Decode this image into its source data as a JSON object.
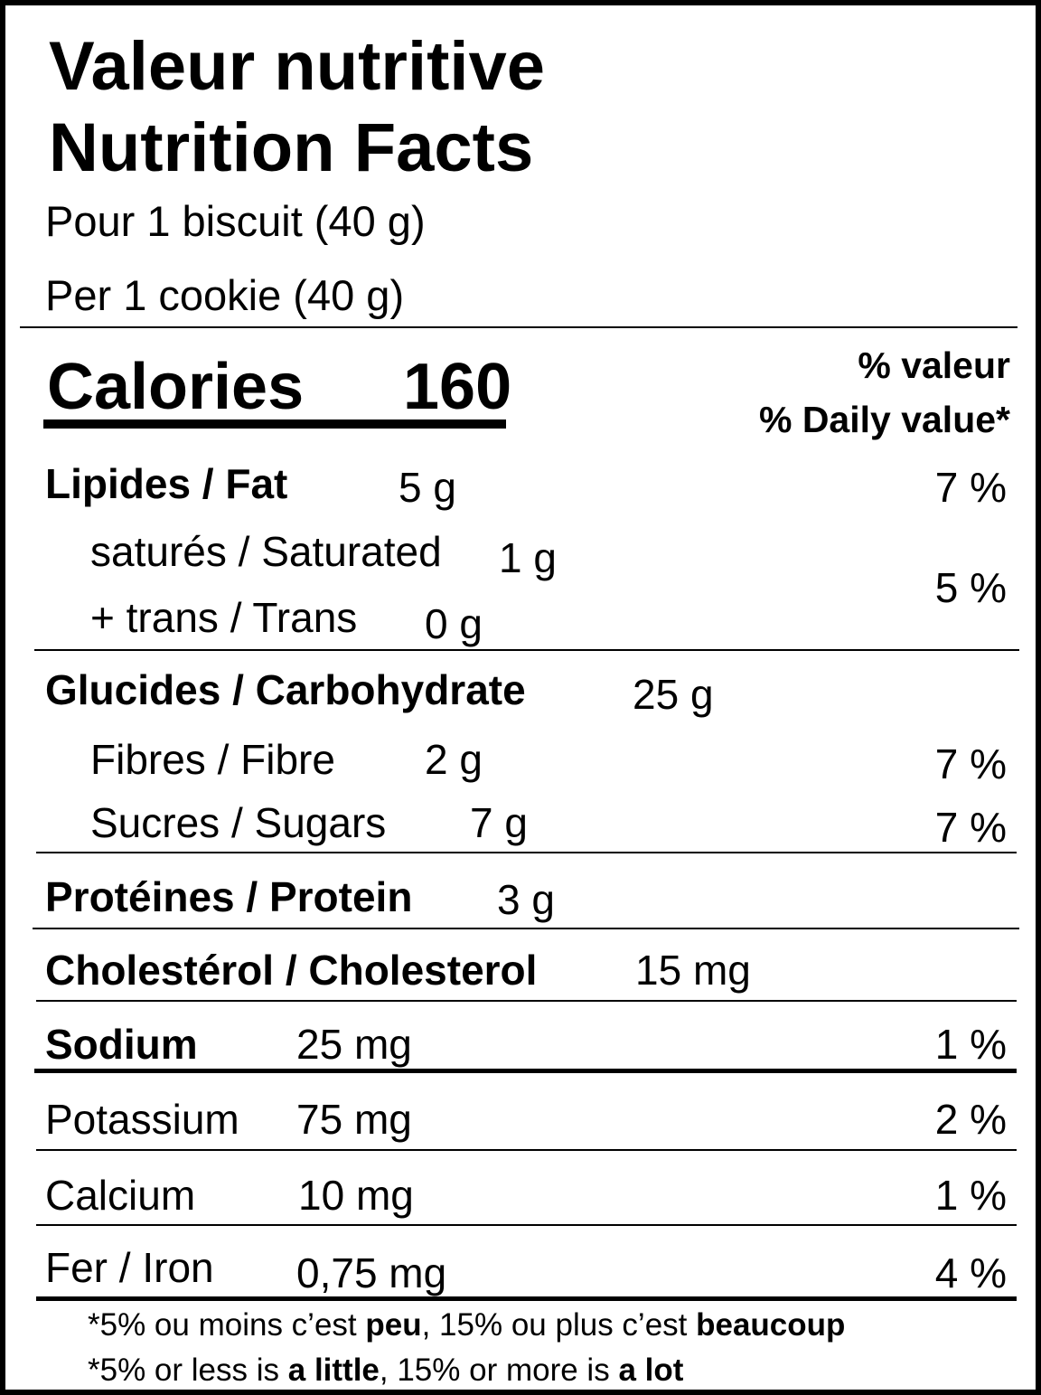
{
  "header": {
    "title_fr": "Valeur nutritive",
    "title_en": "Nutrition Facts",
    "serving_fr": "Pour 1 biscuit (40 g)",
    "serving_en": "Per 1 cookie (40 g)"
  },
  "calories": {
    "label": "Calories",
    "value": "160"
  },
  "daily_value_header": {
    "fr": "% valeur",
    "en": "% Daily value*"
  },
  "nutrients": {
    "fat": {
      "label": "Lipides / Fat",
      "amount": "5 g",
      "dv": "7 %"
    },
    "saturated": {
      "label": "saturés / Saturated",
      "amount": "1 g"
    },
    "trans": {
      "label": "+ trans / Trans",
      "amount": "0 g"
    },
    "sat_trans_dv": "5 %",
    "carbohydrate": {
      "label": "Glucides / Carbohydrate",
      "amount": "25 g"
    },
    "fibre": {
      "label": "Fibres / Fibre",
      "amount": "2 g",
      "dv": "7 %"
    },
    "sugars": {
      "label": "Sucres / Sugars",
      "amount": "7 g",
      "dv": "7 %"
    },
    "protein": {
      "label": "Protéines / Protein",
      "amount": "3 g"
    },
    "cholesterol": {
      "label": "Cholestérol / Cholesterol",
      "amount": "15 mg"
    },
    "sodium": {
      "label": "Sodium",
      "amount": "25 mg",
      "dv": "1 %"
    },
    "potassium": {
      "label": "Potassium",
      "amount": "75 mg",
      "dv": "2 %"
    },
    "calcium": {
      "label": "Calcium",
      "amount": "10 mg",
      "dv": "1 %"
    },
    "iron": {
      "label": "Fer / Iron",
      "amount": "0,75 mg",
      "dv": "4 %"
    }
  },
  "footnote": {
    "fr": {
      "pre": "*5% ou moins c’est ",
      "b1": "peu",
      "mid": ", 15% ou plus c’est ",
      "b2": "beaucoup"
    },
    "en": {
      "pre": "*5% or less is ",
      "b1": "a little",
      "mid": ", 15% or more is ",
      "b2": "a lot"
    }
  }
}
